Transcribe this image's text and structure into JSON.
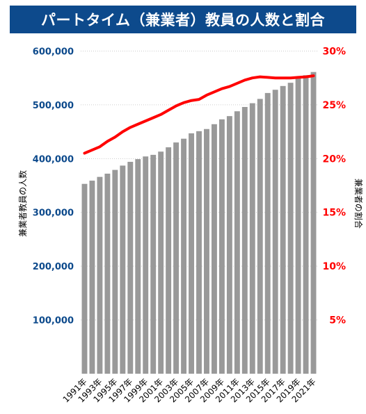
{
  "chart_data": {
    "type": "bar+line",
    "title": "パートタイム（兼業者）教員の人数と割合",
    "x": [
      "1991年",
      "1992年",
      "1993年",
      "1994年",
      "1995年",
      "1996年",
      "1997年",
      "1998年",
      "1999年",
      "2000年",
      "2001年",
      "2002年",
      "2003年",
      "2004年",
      "2005年",
      "2006年",
      "2007年",
      "2008年",
      "2009年",
      "2010年",
      "2011年",
      "2012年",
      "2013年",
      "2014年",
      "2015年",
      "2016年",
      "2017年",
      "2018年",
      "2019年",
      "2020年",
      "2021年"
    ],
    "x_tick_labels": [
      "1991年",
      "1993年",
      "1995年",
      "1997年",
      "1999年",
      "2001年",
      "2003年",
      "2005年",
      "2007年",
      "2009年",
      "2011年",
      "2013年",
      "2015年",
      "2017年",
      "2019年",
      "2021年"
    ],
    "series": [
      {
        "type": "bar",
        "axis": "left",
        "color": "#999999",
        "values": [
          353000,
          359000,
          366000,
          372000,
          379000,
          387000,
          394000,
          399000,
          404000,
          407000,
          413000,
          421000,
          430000,
          437000,
          447000,
          451000,
          455000,
          464000,
          473000,
          479000,
          488000,
          496000,
          503000,
          511000,
          522000,
          528000,
          535000,
          541000,
          549000,
          555000,
          561000
        ]
      },
      {
        "type": "line",
        "axis": "right",
        "color": "#ff0000",
        "values": [
          20.5,
          20.8,
          21.1,
          21.6,
          22.0,
          22.5,
          22.9,
          23.2,
          23.5,
          23.8,
          24.1,
          24.5,
          24.9,
          25.2,
          25.4,
          25.5,
          25.9,
          26.2,
          26.5,
          26.7,
          27.0,
          27.3,
          27.5,
          27.6,
          27.55,
          27.5,
          27.5,
          27.5,
          27.55,
          27.6,
          27.7
        ]
      }
    ],
    "left_axis": {
      "label": "兼業者教員の人数",
      "range": [
        0,
        620000
      ],
      "ticks": [
        100000,
        200000,
        300000,
        400000,
        500000,
        600000
      ],
      "tick_labels": [
        "100,000",
        "200,000",
        "300,000",
        "400,000",
        "500,000",
        "600,000"
      ],
      "color": "#0d4a8c"
    },
    "right_axis": {
      "label": "兼業者の割合",
      "range": [
        0,
        31
      ],
      "ticks": [
        5,
        10,
        15,
        20,
        25,
        30
      ],
      "tick_labels": [
        "5%",
        "10%",
        "15%",
        "20%",
        "25%",
        "30%"
      ],
      "color": "#ff0000"
    },
    "grid": "dotted horizontal"
  }
}
